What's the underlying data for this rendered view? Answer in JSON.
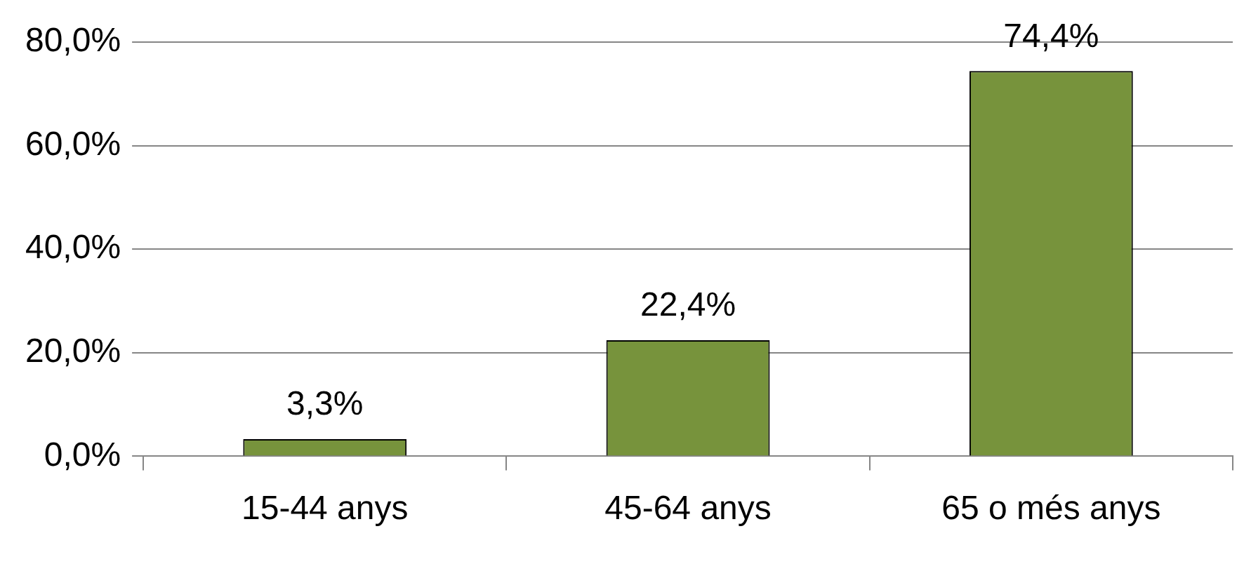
{
  "chart_data": {
    "type": "bar",
    "categories": [
      "15-44 anys",
      "45-64 anys",
      "65 o més anys"
    ],
    "values": [
      3.3,
      22.4,
      74.4
    ],
    "color": "#77933c",
    "value_labels": [
      "3,3%",
      "22,4%",
      "74,4%"
    ],
    "ylim": [
      0,
      80
    ],
    "yticks": [
      {
        "value": 0,
        "label": "0,0%"
      },
      {
        "value": 20,
        "label": "20,0%"
      },
      {
        "value": 40,
        "label": "40,0%"
      },
      {
        "value": 60,
        "label": "60,0%"
      },
      {
        "value": 80,
        "label": "80,0%"
      }
    ],
    "grid": "y"
  }
}
